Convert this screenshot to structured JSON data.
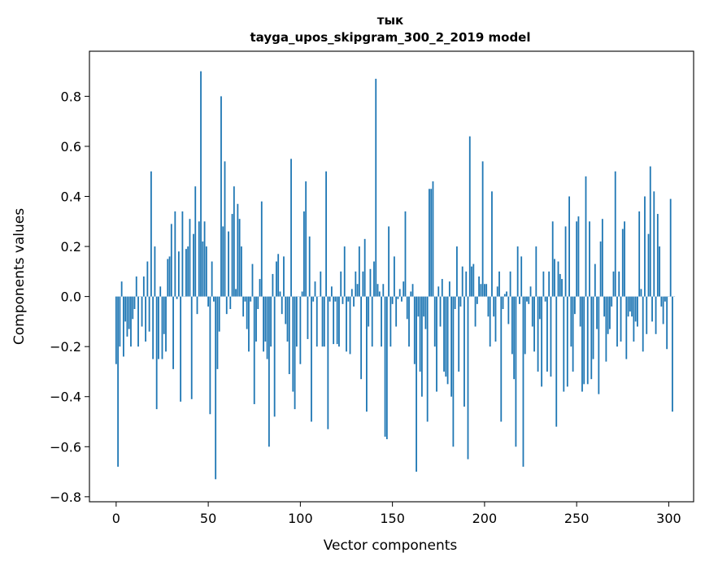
{
  "chart_data": {
    "type": "bar",
    "title": "тык",
    "subtitle": "tayga_upos_skipgram_300_2_2019 model",
    "xlabel": "Vector components",
    "ylabel": "Components values",
    "xlim": [
      -14.5,
      313.5
    ],
    "ylim": [
      -0.82,
      0.98
    ],
    "xticks": [
      0,
      50,
      100,
      150,
      200,
      250,
      300
    ],
    "yticks": [
      -0.8,
      -0.6,
      -0.4,
      -0.2,
      0.0,
      0.2,
      0.4,
      0.6,
      0.8
    ],
    "ytick_labels": [
      "−0.8",
      "−0.6",
      "−0.4",
      "−0.2",
      "0.0",
      "0.2",
      "0.4",
      "0.6",
      "0.8"
    ],
    "bar_color": "#1f77b4",
    "grid": false,
    "values": [
      -0.27,
      -0.68,
      -0.2,
      0.06,
      -0.24,
      -0.1,
      -0.16,
      -0.13,
      -0.2,
      -0.09,
      -0.05,
      0.08,
      -0.2,
      0.0,
      -0.12,
      0.08,
      -0.18,
      0.14,
      -0.14,
      0.5,
      -0.25,
      0.2,
      -0.45,
      -0.25,
      0.04,
      -0.25,
      -0.15,
      -0.22,
      0.15,
      0.16,
      0.29,
      -0.29,
      0.34,
      -0.01,
      0.18,
      -0.42,
      0.34,
      0.0,
      0.19,
      0.2,
      0.31,
      -0.41,
      0.25,
      0.44,
      -0.07,
      0.3,
      0.9,
      0.22,
      0.3,
      0.2,
      -0.04,
      -0.47,
      0.14,
      -0.02,
      -0.73,
      -0.29,
      -0.14,
      0.8,
      0.28,
      0.54,
      -0.07,
      0.26,
      -0.05,
      0.33,
      0.44,
      0.03,
      0.37,
      0.31,
      0.2,
      -0.08,
      -0.02,
      -0.13,
      -0.22,
      -0.02,
      0.13,
      -0.43,
      -0.18,
      -0.05,
      0.07,
      0.38,
      -0.22,
      -0.18,
      -0.25,
      -0.6,
      -0.2,
      0.09,
      -0.48,
      0.14,
      0.17,
      0.02,
      -0.07,
      0.16,
      -0.11,
      -0.18,
      -0.31,
      0.55,
      -0.38,
      -0.45,
      -0.2,
      0.0,
      -0.27,
      0.02,
      0.34,
      0.46,
      -0.17,
      0.24,
      -0.5,
      -0.02,
      0.06,
      -0.2,
      0.0,
      0.1,
      -0.2,
      -0.2,
      0.5,
      -0.53,
      -0.02,
      0.04,
      -0.19,
      -0.02,
      -0.19,
      -0.2,
      0.1,
      -0.03,
      0.2,
      -0.22,
      -0.02,
      -0.23,
      0.03,
      -0.04,
      0.1,
      0.05,
      0.2,
      -0.33,
      0.1,
      0.23,
      -0.46,
      -0.12,
      0.11,
      -0.2,
      0.14,
      0.87,
      0.05,
      0.02,
      -0.2,
      0.05,
      -0.56,
      -0.57,
      0.28,
      -0.2,
      -0.03,
      0.16,
      -0.12,
      -0.01,
      0.03,
      -0.02,
      0.06,
      0.34,
      -0.09,
      -0.2,
      0.02,
      0.05,
      -0.27,
      -0.7,
      -0.08,
      -0.3,
      -0.4,
      -0.08,
      -0.13,
      -0.5,
      0.43,
      0.43,
      0.46,
      -0.2,
      -0.38,
      0.04,
      -0.12,
      0.07,
      -0.3,
      -0.32,
      -0.35,
      0.06,
      -0.4,
      -0.6,
      -0.05,
      0.2,
      -0.3,
      -0.04,
      0.12,
      -0.44,
      0.1,
      -0.65,
      0.64,
      0.12,
      0.13,
      -0.12,
      -0.03,
      0.08,
      0.05,
      0.54,
      0.05,
      0.05,
      -0.08,
      -0.2,
      0.42,
      -0.08,
      -0.18,
      0.04,
      0.1,
      -0.5,
      -0.05,
      0.01,
      0.02,
      -0.11,
      0.1,
      -0.23,
      -0.33,
      -0.6,
      0.2,
      -0.03,
      0.16,
      -0.68,
      -0.23,
      -0.02,
      -0.03,
      0.04,
      -0.12,
      -0.22,
      0.2,
      -0.3,
      -0.09,
      -0.36,
      0.1,
      -0.02,
      -0.3,
      0.1,
      -0.32,
      0.3,
      0.15,
      -0.52,
      0.14,
      0.09,
      0.07,
      -0.38,
      0.28,
      -0.36,
      0.4,
      -0.2,
      -0.3,
      -0.07,
      0.3,
      0.32,
      -0.12,
      -0.38,
      -0.35,
      0.48,
      -0.35,
      0.3,
      -0.33,
      -0.25,
      0.13,
      -0.13,
      -0.39,
      0.22,
      0.31,
      -0.08,
      -0.26,
      -0.15,
      -0.13,
      -0.04,
      0.1,
      0.5,
      -0.2,
      0.1,
      -0.18,
      0.27,
      0.3,
      -0.25,
      -0.08,
      -0.06,
      -0.08,
      -0.18,
      -0.1,
      -0.12,
      0.34,
      0.03,
      -0.22,
      0.4,
      -0.15,
      0.25,
      0.52,
      -0.1,
      0.42,
      -0.15,
      0.33,
      0.2,
      -0.04,
      -0.11,
      -0.02,
      -0.21,
      0.0,
      0.39,
      -0.46,
      0.0
    ]
  }
}
